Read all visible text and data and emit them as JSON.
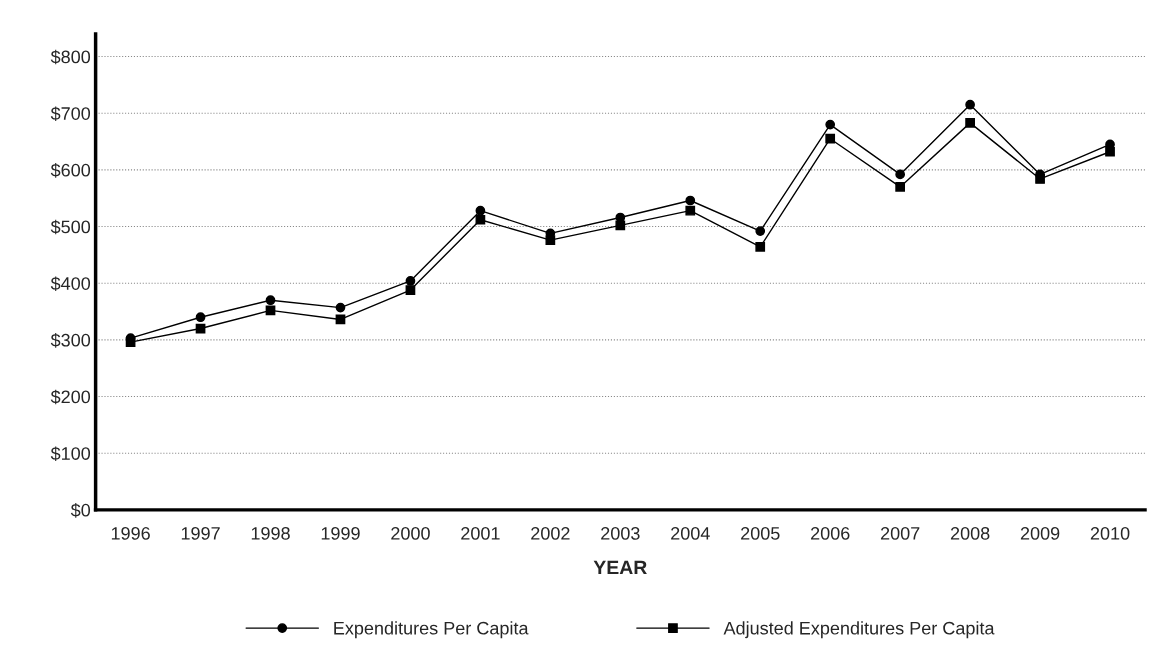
{
  "chart_data": {
    "type": "line",
    "xlabel": "YEAR",
    "categories": [
      "1996",
      "1997",
      "1998",
      "1999",
      "2000",
      "2001",
      "2002",
      "2003",
      "2004",
      "2005",
      "2006",
      "2007",
      "2008",
      "2009",
      "2010"
    ],
    "series": [
      {
        "name": "Expenditures Per Capita",
        "color": "#000000",
        "marker": "circle",
        "values": [
          303,
          340,
          370,
          357,
          404,
          528,
          488,
          516,
          546,
          492,
          680,
          592,
          715,
          592,
          645
        ]
      },
      {
        "name": "Adjusted Expenditures Per Capita",
        "color": "#000000",
        "marker": "square",
        "values": [
          296,
          320,
          352,
          336,
          388,
          512,
          476,
          502,
          528,
          464,
          655,
          570,
          683,
          584,
          632
        ]
      }
    ],
    "ylim": [
      0,
      840
    ],
    "yticks": [
      {
        "value": 0,
        "label": "$0"
      },
      {
        "value": 100,
        "label": "$100"
      },
      {
        "value": 200,
        "label": "$200"
      },
      {
        "value": 300,
        "label": "$300"
      },
      {
        "value": 400,
        "label": "$400"
      },
      {
        "value": 500,
        "label": "$500"
      },
      {
        "value": 600,
        "label": "$600"
      },
      {
        "value": 700,
        "label": "$700"
      },
      {
        "value": 800,
        "label": "$800"
      }
    ],
    "grid": "y",
    "legend": "bottom",
    "line_style": "solid"
  }
}
